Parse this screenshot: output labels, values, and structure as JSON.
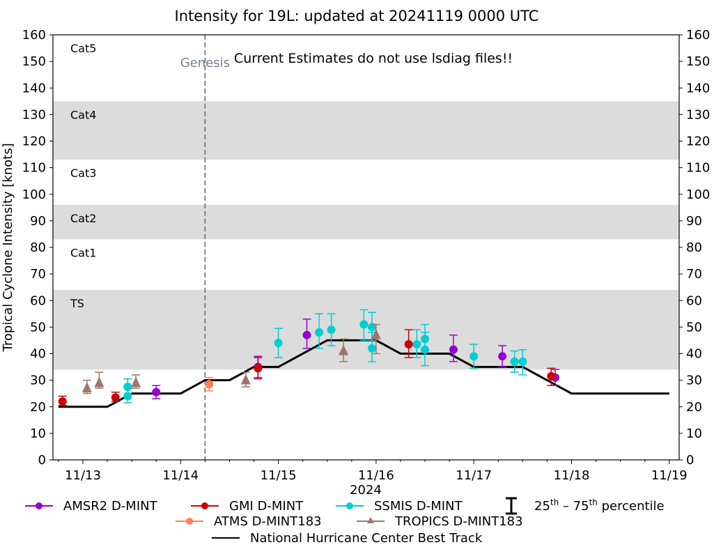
{
  "chart_data": {
    "type": "scatter",
    "title": "Intensity for 19L: updated at 20241119 0000 UTC",
    "xlabel": "2024",
    "ylabel": "Tropical Cyclone Intensity [knots]",
    "ylim": [
      0,
      160
    ],
    "xlim_days": [
      "11/12 17",
      "11/19 02"
    ],
    "yticks": [
      0,
      10,
      20,
      30,
      40,
      50,
      60,
      70,
      80,
      90,
      100,
      110,
      120,
      130,
      140,
      150,
      160
    ],
    "xticks": [
      "11/13",
      "11/14",
      "11/15",
      "11/16",
      "11/17",
      "11/18",
      "11/19"
    ],
    "grid": false,
    "category_bands": [
      {
        "label": "TS",
        "low": 34,
        "high": 64,
        "shaded": true
      },
      {
        "label": "Cat1",
        "low": 64,
        "high": 83,
        "shaded": false
      },
      {
        "label": "Cat2",
        "low": 83,
        "high": 96,
        "shaded": true
      },
      {
        "label": "Cat3",
        "low": 96,
        "high": 113,
        "shaded": false
      },
      {
        "label": "Cat4",
        "low": 113,
        "high": 135,
        "shaded": true
      },
      {
        "label": "Cat5",
        "low": 135,
        "high": 160,
        "shaded": false
      }
    ],
    "band_color": "#dcdcdc",
    "genesis": {
      "label": "Genesis",
      "time": "11/14 06"
    },
    "annotation": "Current Estimates do not use lsdiag files!!",
    "best_track": {
      "name": "National Hurricane Center Best Track",
      "color": "#000000",
      "points": [
        [
          "11/12 18",
          20
        ],
        [
          "11/13 06",
          20
        ],
        [
          "11/13 12",
          25
        ],
        [
          "11/14 00",
          25
        ],
        [
          "11/14 06",
          30
        ],
        [
          "11/14 12",
          30
        ],
        [
          "11/14 18",
          35
        ],
        [
          "11/15 00",
          35
        ],
        [
          "11/15 12",
          45
        ],
        [
          "11/16 00",
          45
        ],
        [
          "11/16 06",
          40
        ],
        [
          "11/16 18",
          40
        ],
        [
          "11/17 00",
          35
        ],
        [
          "11/17 12",
          35
        ],
        [
          "11/18 00",
          25
        ],
        [
          "11/19 00",
          25
        ]
      ]
    },
    "series": [
      {
        "name": "AMSR2 D-MINT",
        "color": "#9400d3",
        "marker": "circle",
        "points": [
          {
            "t": "11/13 18",
            "v": 25.5,
            "lo": 23,
            "hi": 28
          },
          {
            "t": "11/14 19",
            "v": 35,
            "lo": 31,
            "hi": 39
          },
          {
            "t": "11/15 07",
            "v": 47,
            "lo": 42,
            "hi": 53
          },
          {
            "t": "11/16 19",
            "v": 41.5,
            "lo": 37,
            "hi": 47
          },
          {
            "t": "11/17 07",
            "v": 39,
            "lo": 35,
            "hi": 43
          },
          {
            "t": "11/17 20",
            "v": 31,
            "lo": 28,
            "hi": 34
          }
        ]
      },
      {
        "name": "GMI D-MINT",
        "color": "#cc0000",
        "marker": "circle",
        "points": [
          {
            "t": "11/12 19",
            "v": 22,
            "lo": 20.5,
            "hi": 24
          },
          {
            "t": "11/13 08",
            "v": 23.5,
            "lo": 22,
            "hi": 25.5
          },
          {
            "t": "11/14 19",
            "v": 34.5,
            "lo": 30.5,
            "hi": 38.5
          },
          {
            "t": "11/16 08",
            "v": 43.5,
            "lo": 38.5,
            "hi": 49
          },
          {
            "t": "11/17 19",
            "v": 31.5,
            "lo": 28,
            "hi": 34.5
          }
        ]
      },
      {
        "name": "SSMIS D-MINT",
        "color": "#00ced1",
        "marker": "circle",
        "points": [
          {
            "t": "11/13 11",
            "v": 24,
            "lo": 21.5,
            "hi": 27
          },
          {
            "t": "11/13 11",
            "v": 27.5,
            "lo": 25,
            "hi": 30.5
          },
          {
            "t": "11/15 00",
            "v": 44,
            "lo": 38.5,
            "hi": 49.5
          },
          {
            "t": "11/15 10",
            "v": 48,
            "lo": 42,
            "hi": 55
          },
          {
            "t": "11/15 13",
            "v": 49,
            "lo": 43,
            "hi": 55
          },
          {
            "t": "11/15 21",
            "v": 51,
            "lo": 45,
            "hi": 56.5
          },
          {
            "t": "11/15 23",
            "v": 50,
            "lo": 45,
            "hi": 55.5
          },
          {
            "t": "11/15 23",
            "v": 42,
            "lo": 37,
            "hi": 48
          },
          {
            "t": "11/16 10",
            "v": 43.5,
            "lo": 38.5,
            "hi": 49
          },
          {
            "t": "11/16 12",
            "v": 45.5,
            "lo": 41,
            "hi": 51
          },
          {
            "t": "11/16 12",
            "v": 41.5,
            "lo": 35.5,
            "hi": 48
          },
          {
            "t": "11/17 00",
            "v": 39,
            "lo": 34.5,
            "hi": 43.5
          },
          {
            "t": "11/17 10",
            "v": 37,
            "lo": 33,
            "hi": 41
          },
          {
            "t": "11/17 12",
            "v": 37,
            "lo": 32,
            "hi": 41.5
          }
        ]
      },
      {
        "name": "ATMS D-MINT183",
        "color": "#ff7f50",
        "marker": "circle",
        "points": [
          {
            "t": "11/14 07",
            "v": 28.5,
            "lo": 26,
            "hi": 31
          }
        ]
      },
      {
        "name": "TROPICS D-MINT183",
        "color": "#a0756e",
        "marker": "triangle",
        "points": [
          {
            "t": "11/13 01",
            "v": 27,
            "lo": 25,
            "hi": 30
          },
          {
            "t": "11/13 04",
            "v": 29,
            "lo": 27,
            "hi": 33
          },
          {
            "t": "11/13 13",
            "v": 29,
            "lo": 27,
            "hi": 32
          },
          {
            "t": "11/14 16",
            "v": 30,
            "lo": 27.5,
            "hi": 33
          },
          {
            "t": "11/15 16",
            "v": 41,
            "lo": 37,
            "hi": 45.5
          },
          {
            "t": "11/16 00",
            "v": 47,
            "lo": 40,
            "hi": 51
          }
        ]
      }
    ],
    "legend": {
      "placement": "bottom",
      "entries": [
        {
          "label": "AMSR2 D-MINT",
          "series": 0
        },
        {
          "label": "GMI D-MINT",
          "series": 1
        },
        {
          "label": "SSMIS D-MINT",
          "series": 2
        },
        {
          "label": "25th – 75th percentile",
          "sup_label_parts": [
            "25",
            "th",
            " – 75",
            "th",
            " percentile"
          ]
        },
        {
          "label": "ATMS D-MINT183",
          "series": 3
        },
        {
          "label": "TROPICS D-MINT183",
          "series": 4
        },
        {
          "label": "National Hurricane Center Best Track",
          "series": "best_track"
        }
      ]
    }
  }
}
